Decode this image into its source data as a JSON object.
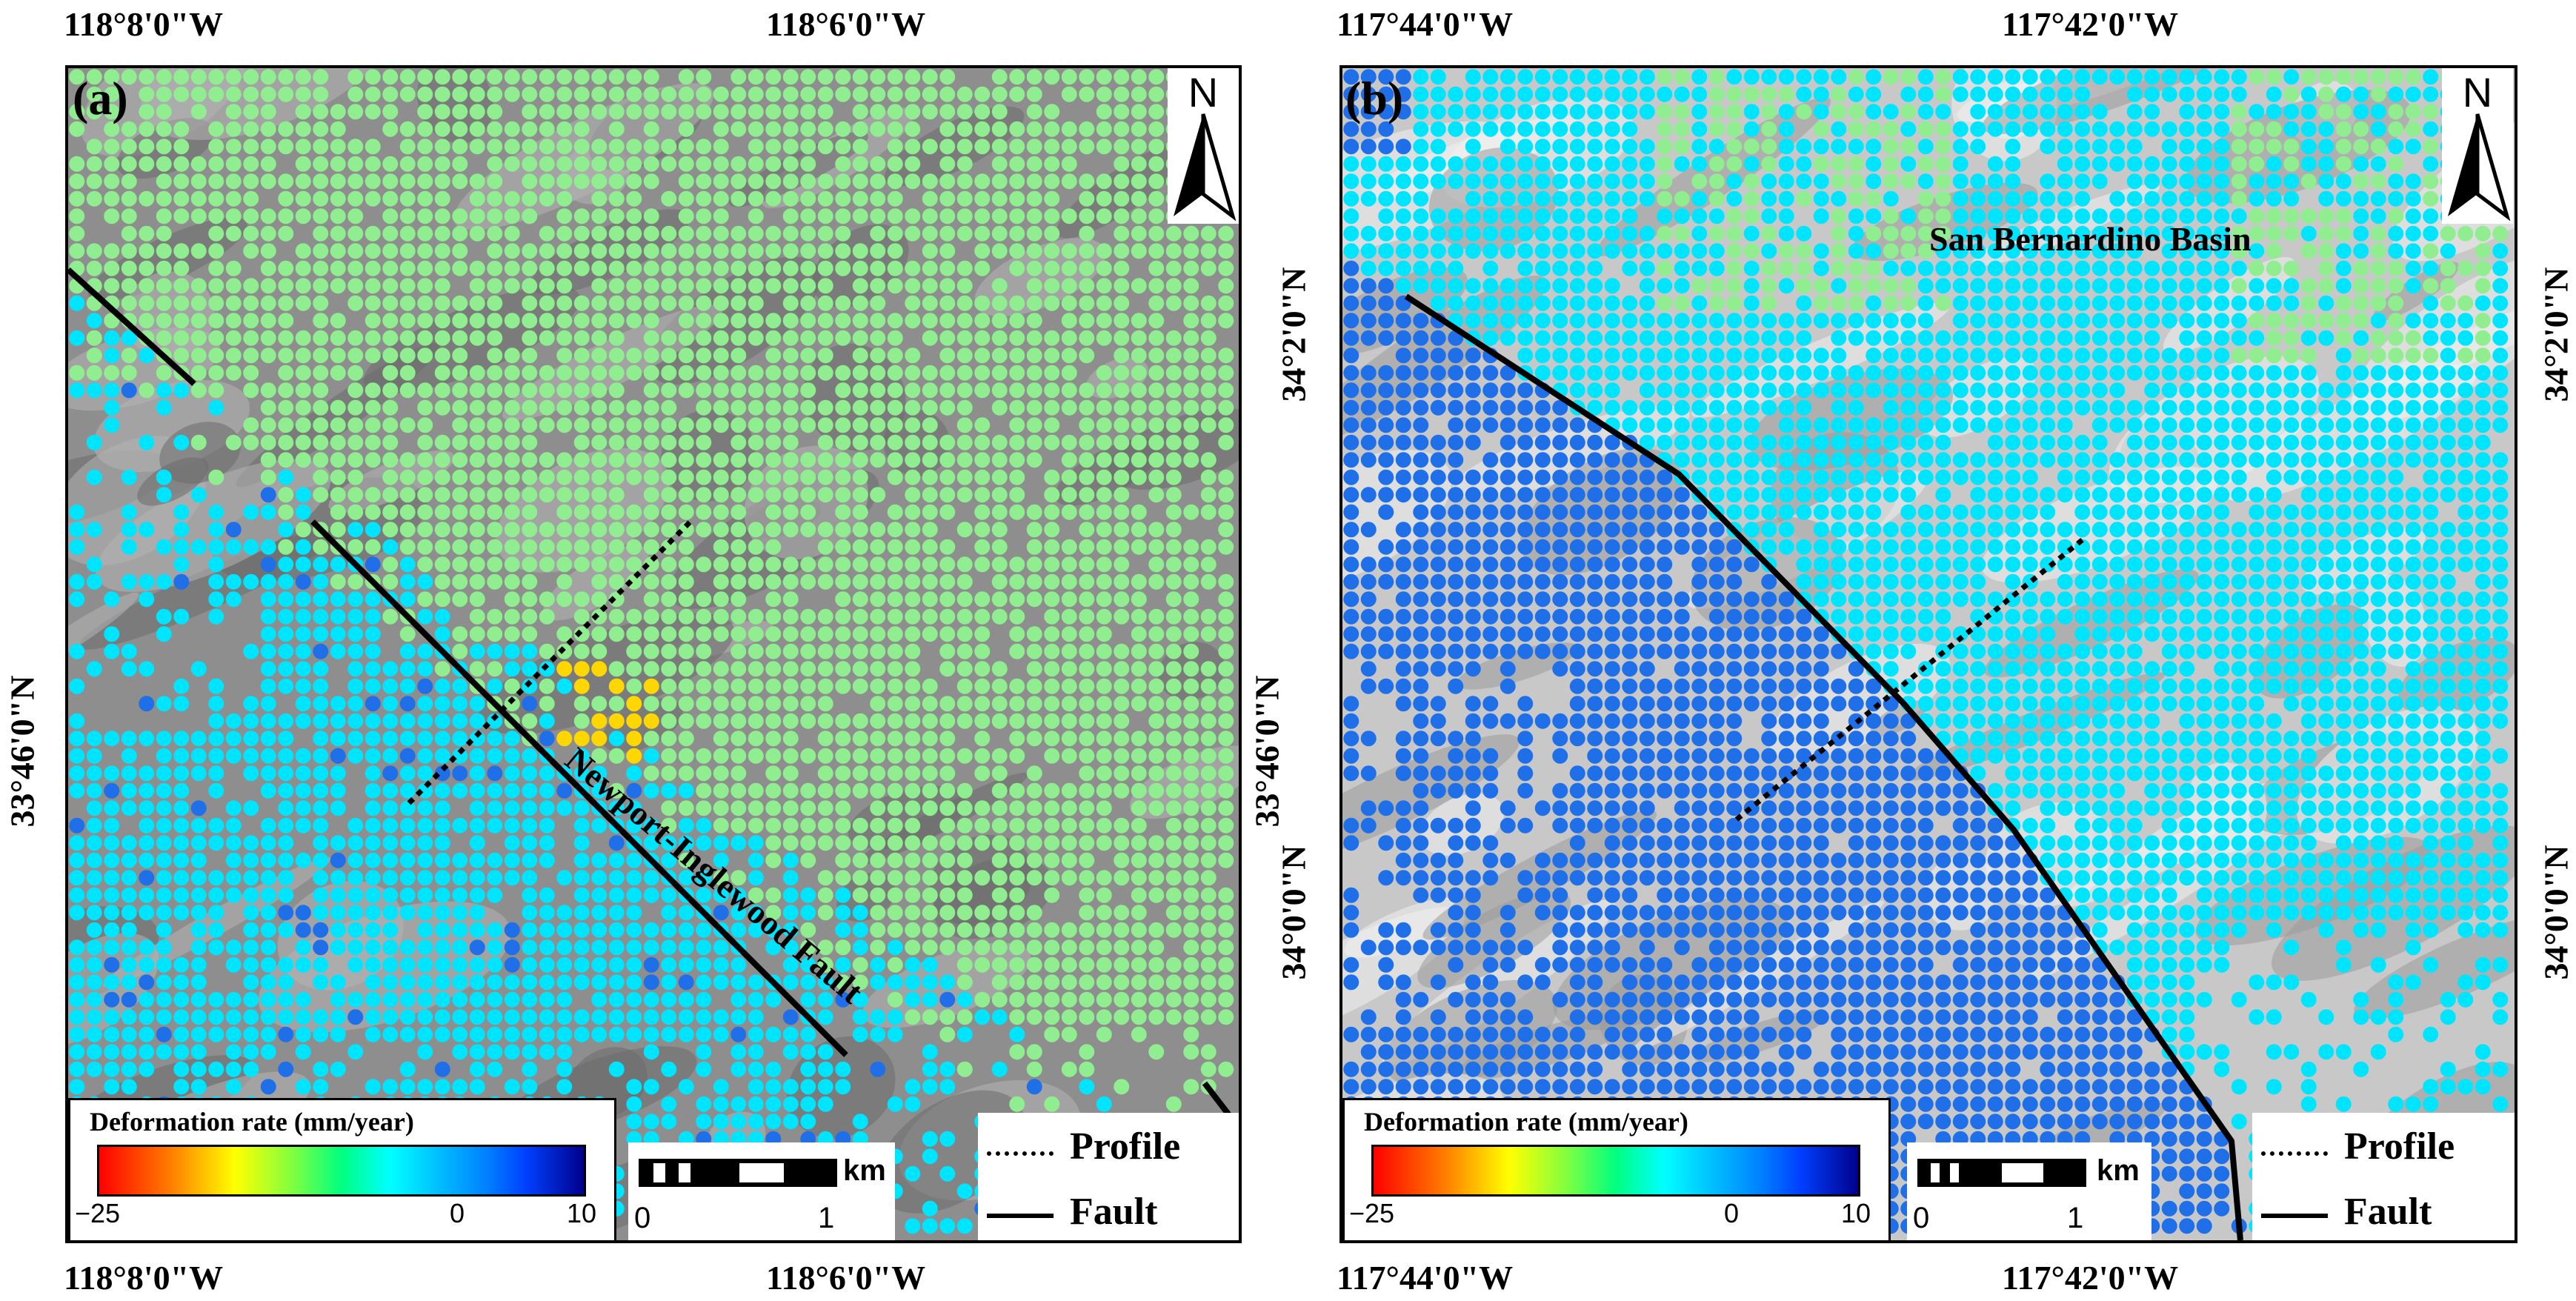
{
  "panels": [
    {
      "label": "(a)",
      "top_lon": [
        "118°8'0\"W",
        "118°6'0\"W"
      ],
      "bottom_lon": [
        "118°8'0\"W",
        "118°6'0\"W"
      ],
      "left_lat": [
        "33°46'0\"N"
      ],
      "right_lat": [
        "33°46'0\"N"
      ],
      "north_label": "N",
      "fault_name": "Newport-Inglewood Fault",
      "colorbar": {
        "title": "Deformation rate (mm/year)",
        "ticks": [
          "−25",
          "0",
          "10"
        ]
      },
      "scalebar": {
        "units": "km",
        "ticks": [
          "0",
          "1"
        ]
      },
      "legend": {
        "profile": "Profile",
        "fault": "Fault"
      },
      "colors": {
        "dominant": "#90ee90",
        "secondary": "#00e5ff",
        "blue": "#1e6fe8",
        "yellow": "#ffd700"
      }
    },
    {
      "label": "(b)",
      "top_lon": [
        "117°44'0\"W",
        "117°42'0\"W"
      ],
      "bottom_lon": [
        "117°44'0\"W",
        "117°42'0\"W"
      ],
      "left_lat": [
        "34°2'0\"N",
        "34°0'0\"N"
      ],
      "right_lat": [
        "34°2'0\"N",
        "34°0'0\"N"
      ],
      "north_label": "N",
      "basin_name": "San Bernardino Basin",
      "colorbar": {
        "title": "Deformation rate (mm/year)",
        "ticks": [
          "−25",
          "0",
          "10"
        ]
      },
      "scalebar": {
        "units": "km",
        "ticks": [
          "0",
          "1"
        ]
      },
      "legend": {
        "profile": "Profile",
        "fault": "Fault"
      },
      "colors": {
        "dominant": "#00e5ff",
        "secondary": "#1e6fe8",
        "light": "#90ee90"
      }
    }
  ]
}
